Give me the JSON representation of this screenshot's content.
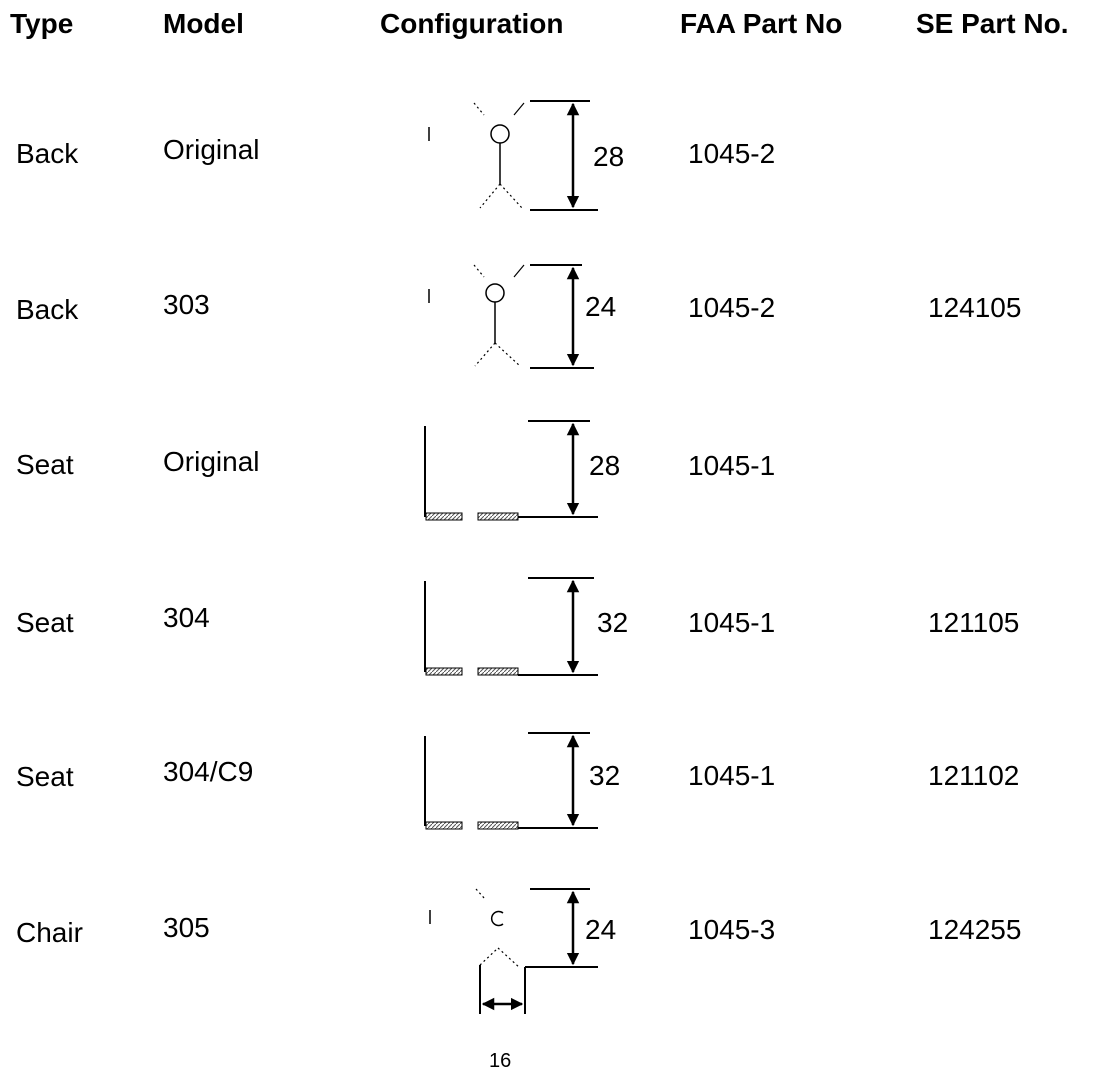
{
  "headers": {
    "type": "Type",
    "model": "Model",
    "configuration": "Configuration",
    "faa_part": "FAA Part No",
    "se_part": "SE Part No."
  },
  "rows": [
    {
      "type": "Back",
      "model": "Original",
      "dimension": "28",
      "faa_part": "1045-2",
      "se_part": "",
      "figure": "back-restraint-icon"
    },
    {
      "type": "Back",
      "model": "303",
      "dimension": "24",
      "faa_part": "1045-2",
      "se_part": "124105",
      "figure": "back-restraint-icon"
    },
    {
      "type": "Seat",
      "model": "Original",
      "dimension": "28",
      "faa_part": "1045-1",
      "se_part": "",
      "figure": "seat-restraint-icon"
    },
    {
      "type": "Seat",
      "model": "304",
      "dimension": "32",
      "faa_part": "1045-1",
      "se_part": "121105",
      "figure": "seat-restraint-icon"
    },
    {
      "type": "Seat",
      "model": "304/C9",
      "dimension": "32",
      "faa_part": "1045-1",
      "se_part": "121102",
      "figure": "seat-restraint-icon"
    },
    {
      "type": "Chair",
      "model": "305",
      "dimension": "24",
      "faa_part": "1045-3",
      "se_part": "124255",
      "figure": "chair-restraint-icon",
      "width_dimension": "16"
    }
  ]
}
